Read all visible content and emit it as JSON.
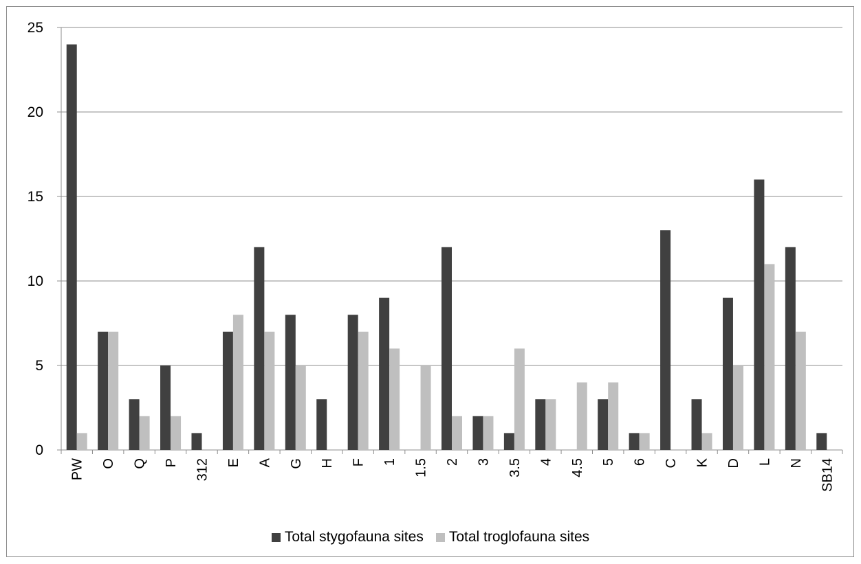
{
  "chart_data": {
    "type": "bar",
    "categories": [
      "PW",
      "O",
      "Q",
      "P",
      "312",
      "E",
      "A",
      "G",
      "H",
      "F",
      "1",
      "1.5",
      "2",
      "3",
      "3.5",
      "4",
      "4.5",
      "5",
      "6",
      "C",
      "K",
      "D",
      "L",
      "N",
      "SB14"
    ],
    "series": [
      {
        "name": "Total stygofauna sites",
        "color": "#404040",
        "values": [
          24,
          7,
          3,
          5,
          1,
          7,
          12,
          8,
          3,
          8,
          9,
          0,
          12,
          2,
          1,
          3,
          0,
          3,
          1,
          13,
          3,
          9,
          16,
          12,
          1
        ]
      },
      {
        "name": "Total troglofauna sites",
        "color": "#bfbfbf",
        "values": [
          1,
          7,
          2,
          2,
          0,
          8,
          7,
          5,
          0,
          7,
          6,
          5,
          2,
          2,
          6,
          3,
          4,
          4,
          1,
          0,
          1,
          5,
          11,
          7,
          0
        ]
      }
    ],
    "ylim": [
      0,
      25
    ],
    "yticks": [
      0,
      5,
      10,
      15,
      20,
      25
    ],
    "grid": true,
    "legend_position": "bottom"
  }
}
